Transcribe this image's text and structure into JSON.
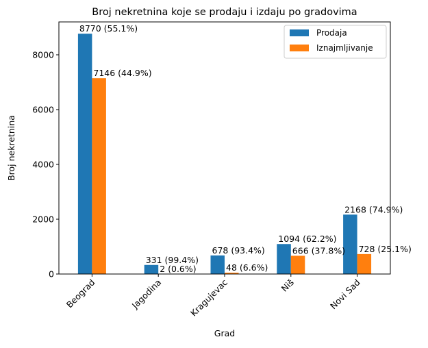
{
  "chart_data": {
    "type": "bar",
    "title": "Broj nekretnina koje se prodaju i izdaju po gradovima",
    "xlabel": "Grad",
    "ylabel": "Broj nekretnina",
    "categories": [
      "Beograd",
      "Jagodina",
      "Kragujevac",
      "Niš",
      "Novi Sad"
    ],
    "series": [
      {
        "name": "Prodaja",
        "color": "#1f77b4",
        "values": [
          8770,
          331,
          678,
          1094,
          2168
        ],
        "labels": [
          "8770 (55.1%)",
          "331 (99.4%)",
          "678 (93.4%)",
          "1094 (62.2%)",
          "2168 (74.9%)"
        ]
      },
      {
        "name": "Iznajmljivanje",
        "color": "#ff7f0e",
        "values": [
          7146,
          2,
          48,
          666,
          728
        ],
        "labels": [
          "7146 (44.9%)",
          "2 (0.6%)",
          "48 (6.6%)",
          "666 (37.8%)",
          "728 (25.1%)"
        ]
      }
    ],
    "ylim": [
      0,
      9200
    ],
    "yticks": [
      "0",
      "2000",
      "4000",
      "6000",
      "8000"
    ],
    "legend_position": "top-right",
    "grid": false
  }
}
